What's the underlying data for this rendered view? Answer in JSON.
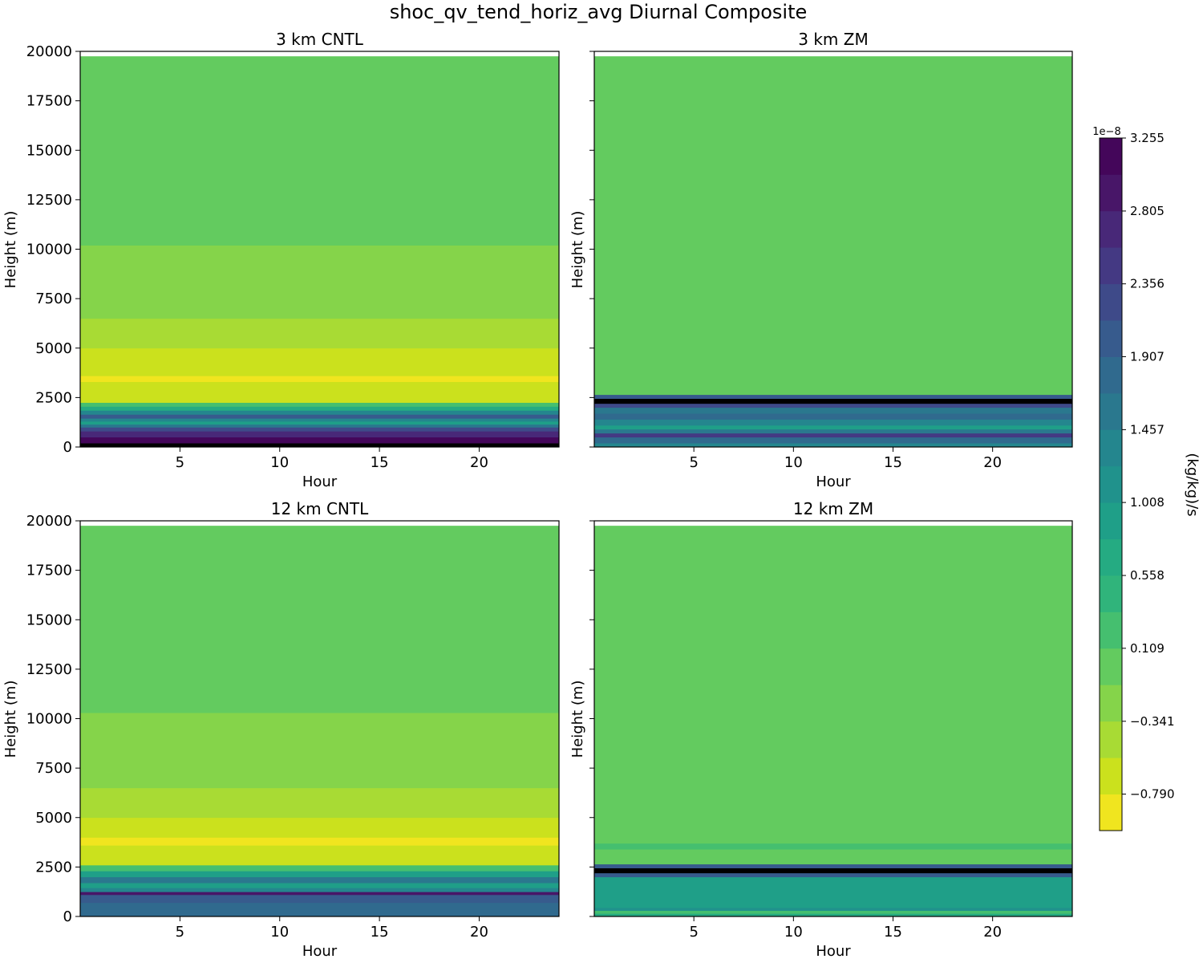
{
  "figure": {
    "title": "shoc_qv_tend_horiz_avg Diurnal Composite"
  },
  "chart_data": [
    {
      "type": "heatmap",
      "subtype": "filled-contour",
      "title": "3 km CNTL",
      "xlabel": "Hour",
      "ylabel": "Height (m)",
      "xlim": [
        0,
        24
      ],
      "ylim": [
        0,
        20000
      ],
      "xticks": [
        5,
        10,
        15,
        20
      ],
      "yticks": [
        0,
        2500,
        5000,
        7500,
        10000,
        12500,
        15000,
        17500,
        20000
      ],
      "data_top_m": 19750,
      "vertical_profile_color_index": [
        {
          "from": 0,
          "to": 200,
          "level": 19
        },
        {
          "from": 200,
          "to": 500,
          "level": 18
        },
        {
          "from": 500,
          "to": 800,
          "level": 16
        },
        {
          "from": 800,
          "to": 1000,
          "level": 14
        },
        {
          "from": 1000,
          "to": 1150,
          "level": 11
        },
        {
          "from": 1150,
          "to": 1300,
          "level": 8
        },
        {
          "from": 1300,
          "to": 1450,
          "level": 10
        },
        {
          "from": 1450,
          "to": 1650,
          "level": 13
        },
        {
          "from": 1650,
          "to": 1850,
          "level": 10
        },
        {
          "from": 1850,
          "to": 2050,
          "level": 7
        },
        {
          "from": 2050,
          "to": 2250,
          "level": 5
        },
        {
          "from": 2250,
          "to": 3300,
          "level": 1
        },
        {
          "from": 3300,
          "to": 3600,
          "level": 0
        },
        {
          "from": 3600,
          "to": 5000,
          "level": 1
        },
        {
          "from": 5000,
          "to": 6500,
          "level": 2
        },
        {
          "from": 6500,
          "to": 10200,
          "level": 3
        },
        {
          "from": 10200,
          "to": 19750,
          "level": 4
        }
      ]
    },
    {
      "type": "heatmap",
      "subtype": "filled-contour",
      "title": "3 km ZM",
      "xlabel": "Hour",
      "ylabel": "Height (m)",
      "xlim": [
        0,
        24
      ],
      "ylim": [
        0,
        20000
      ],
      "xticks": [
        5,
        10,
        15,
        20
      ],
      "yticks": [
        0,
        2500,
        5000,
        7500,
        10000,
        12500,
        15000,
        17500,
        20000
      ],
      "data_top_m": 19750,
      "vertical_profile_color_index": [
        {
          "from": 0,
          "to": 200,
          "level": 10
        },
        {
          "from": 200,
          "to": 500,
          "level": 12
        },
        {
          "from": 500,
          "to": 700,
          "level": 15
        },
        {
          "from": 700,
          "to": 900,
          "level": 11
        },
        {
          "from": 900,
          "to": 1100,
          "level": 8
        },
        {
          "from": 1100,
          "to": 1400,
          "level": 10
        },
        {
          "from": 1400,
          "to": 1700,
          "level": 12
        },
        {
          "from": 1700,
          "to": 2000,
          "level": 11
        },
        {
          "from": 2000,
          "to": 2200,
          "level": 14
        },
        {
          "from": 2200,
          "to": 2450,
          "level": 19
        },
        {
          "from": 2450,
          "to": 2650,
          "level": 13
        },
        {
          "from": 2650,
          "to": 19750,
          "level": 4
        }
      ]
    },
    {
      "type": "heatmap",
      "subtype": "filled-contour",
      "title": "12 km CNTL",
      "xlabel": "Hour",
      "ylabel": "Height (m)",
      "xlim": [
        0,
        24
      ],
      "ylim": [
        0,
        20000
      ],
      "xticks": [
        5,
        10,
        15,
        20
      ],
      "yticks": [
        0,
        2500,
        5000,
        7500,
        10000,
        12500,
        15000,
        17500,
        20000
      ],
      "data_top_m": 19750,
      "vertical_profile_color_index": [
        {
          "from": 0,
          "to": 700,
          "level": 12
        },
        {
          "from": 700,
          "to": 1100,
          "level": 13
        },
        {
          "from": 1100,
          "to": 1250,
          "level": 17
        },
        {
          "from": 1250,
          "to": 1450,
          "level": 10
        },
        {
          "from": 1450,
          "to": 1700,
          "level": 8
        },
        {
          "from": 1700,
          "to": 2000,
          "level": 11
        },
        {
          "from": 2000,
          "to": 2300,
          "level": 8
        },
        {
          "from": 2300,
          "to": 2600,
          "level": 5
        },
        {
          "from": 2600,
          "to": 3600,
          "level": 1
        },
        {
          "from": 3600,
          "to": 4000,
          "level": 0
        },
        {
          "from": 4000,
          "to": 5000,
          "level": 1
        },
        {
          "from": 5000,
          "to": 6500,
          "level": 2
        },
        {
          "from": 6500,
          "to": 10300,
          "level": 3
        },
        {
          "from": 10300,
          "to": 19750,
          "level": 4
        }
      ]
    },
    {
      "type": "heatmap",
      "subtype": "filled-contour",
      "title": "12 km ZM",
      "xlabel": "Hour",
      "ylabel": "Height (m)",
      "xlim": [
        0,
        24
      ],
      "ylim": [
        0,
        20000
      ],
      "xticks": [
        5,
        10,
        15,
        20
      ],
      "yticks": [
        0,
        2500,
        5000,
        7500,
        10000,
        12500,
        15000,
        17500,
        20000
      ],
      "data_top_m": 19750,
      "vertical_profile_color_index": [
        {
          "from": 0,
          "to": 150,
          "level": 7
        },
        {
          "from": 150,
          "to": 300,
          "level": 5
        },
        {
          "from": 300,
          "to": 450,
          "level": 9
        },
        {
          "from": 450,
          "to": 2000,
          "level": 8
        },
        {
          "from": 2000,
          "to": 2200,
          "level": 13
        },
        {
          "from": 2200,
          "to": 2450,
          "level": 19
        },
        {
          "from": 2450,
          "to": 2650,
          "level": 13
        },
        {
          "from": 2650,
          "to": 3400,
          "level": 4
        },
        {
          "from": 3400,
          "to": 3700,
          "level": 5
        },
        {
          "from": 3700,
          "to": 19750,
          "level": 4
        }
      ]
    }
  ],
  "colorbar": {
    "label": "(kg/kg)/s",
    "offset_text": "1e−8",
    "range": [
      -1.015,
      3.255
    ],
    "tick_values": [
      -0.79,
      -0.341,
      0.109,
      0.558,
      1.008,
      1.457,
      1.907,
      2.356,
      2.805,
      3.255
    ],
    "tick_labels": [
      "−0.790",
      "−0.341",
      "0.109",
      "0.558",
      "1.008",
      "1.457",
      "1.907",
      "2.356",
      "2.805",
      "3.255"
    ],
    "levels": 19,
    "colors": [
      "#f0e51f",
      "#cbe11d",
      "#a8db34",
      "#85d44a",
      "#63cb5f",
      "#45bf6f",
      "#30b47b",
      "#25ab82",
      "#1f9f88",
      "#20928c",
      "#24868e",
      "#2a788e",
      "#306a8e",
      "#375b8d",
      "#3e4a89",
      "#443983",
      "#482878",
      "#481668",
      "#44065a"
    ]
  }
}
